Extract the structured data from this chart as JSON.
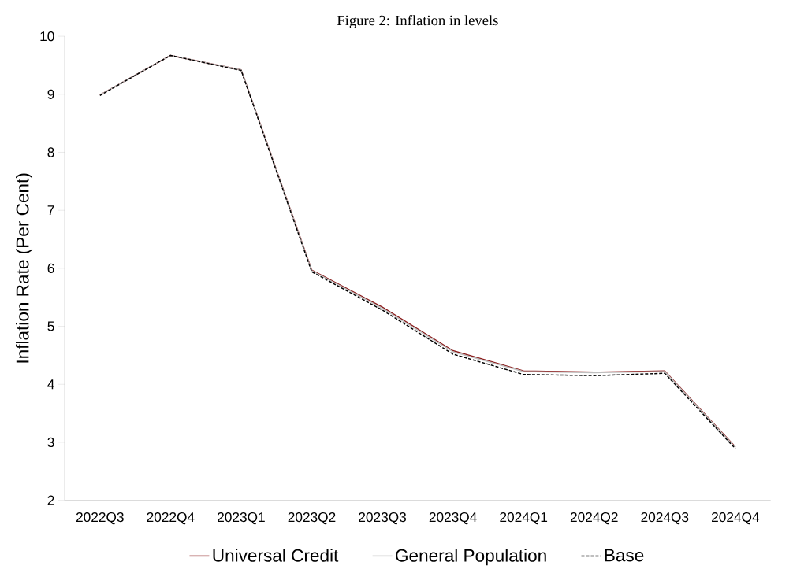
{
  "chart_data": {
    "type": "line",
    "title": "Figure 2: Inflation in levels",
    "ylabel": "Inflation Rate (Per Cent)",
    "categories": [
      "2022Q3",
      "2022Q4",
      "2023Q1",
      "2023Q2",
      "2023Q3",
      "2023Q4",
      "2024Q1",
      "2024Q2",
      "2024Q3",
      "2024Q4"
    ],
    "series": [
      {
        "name": "Universal Credit",
        "color": "#8b1a1a",
        "line_style": "solid",
        "values": [
          8.99,
          9.67,
          9.42,
          5.97,
          5.33,
          4.58,
          4.23,
          4.21,
          4.23,
          2.92
        ]
      },
      {
        "name": "General Population",
        "color": "#bfbfbf",
        "line_style": "solid",
        "values": [
          8.99,
          9.67,
          9.42,
          5.96,
          5.31,
          4.56,
          4.22,
          4.2,
          4.22,
          2.91
        ]
      },
      {
        "name": "Base",
        "color": "#000000",
        "line_style": "dashed",
        "values": [
          8.98,
          9.67,
          9.41,
          5.94,
          5.28,
          4.52,
          4.17,
          4.15,
          4.19,
          2.89
        ]
      }
    ],
    "ylim": [
      2,
      10
    ],
    "yticks": [
      2,
      3,
      4,
      5,
      6,
      7,
      8,
      9,
      10
    ],
    "grid": false,
    "legend": "bottom",
    "marker": "none"
  }
}
